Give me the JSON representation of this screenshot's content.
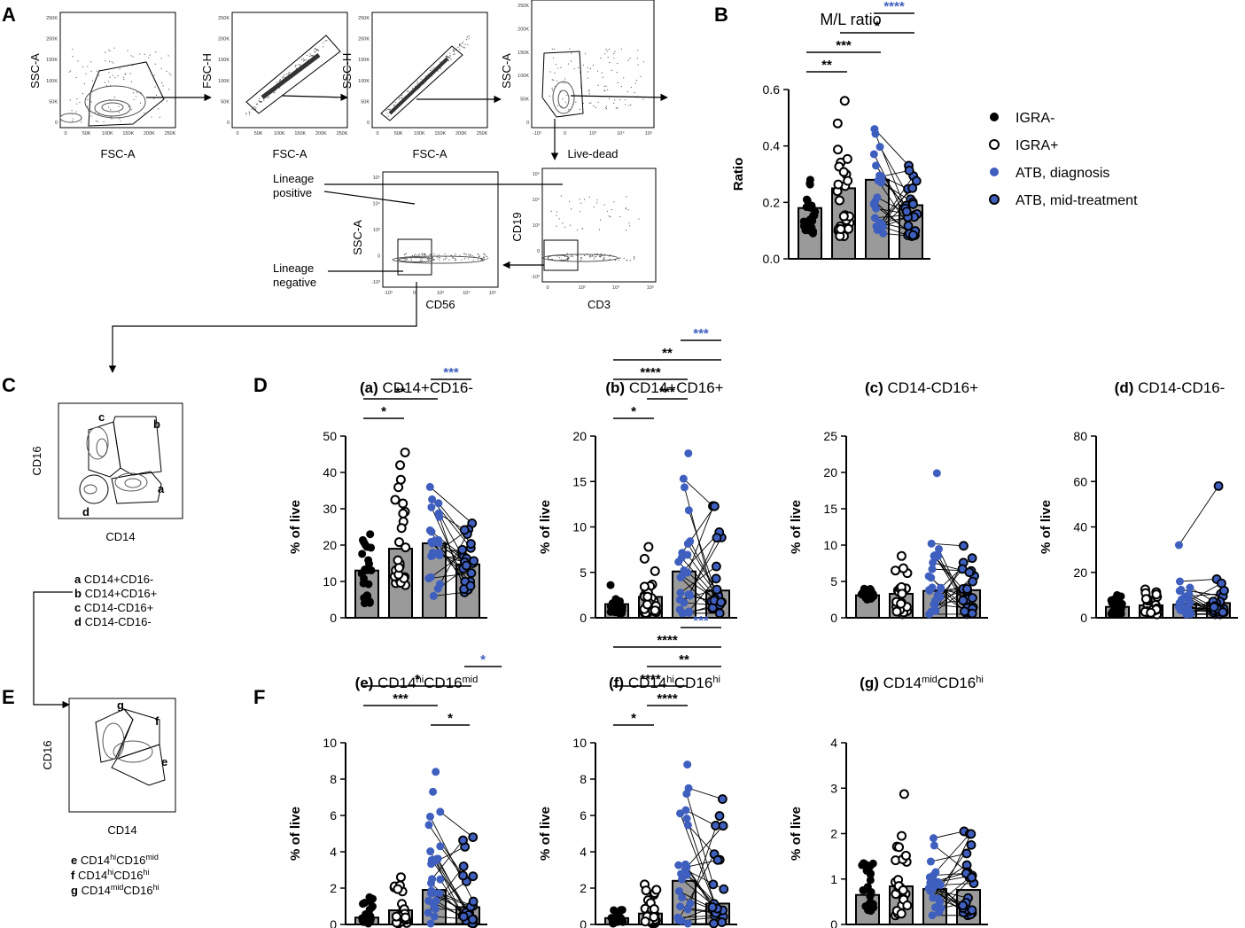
{
  "colors": {
    "black": "#000000",
    "blue": "#3f5fbf",
    "bar": "#9a9a9a",
    "contour": "#555555"
  },
  "panel_letters": [
    "A",
    "B",
    "C",
    "D",
    "E",
    "F"
  ],
  "gating": {
    "plots": [
      {
        "ylabel": "SSC-A",
        "xlabel": "FSC-A",
        "yticks": [
          "250K",
          "200K",
          "150K",
          "100K",
          "50K",
          "0"
        ],
        "xticks": [
          "0",
          "50K",
          "100K",
          "150K",
          "200K",
          "250K"
        ]
      },
      {
        "ylabel": "FSC-H",
        "xlabel": "FSC-A",
        "yticks": [
          "250K",
          "200K",
          "150K",
          "100K",
          "50K",
          "0"
        ],
        "xticks": [
          "0",
          "50K",
          "100K",
          "150K",
          "200K",
          "250K"
        ]
      },
      {
        "ylabel": "SSC-H",
        "xlabel": "FSC-A",
        "yticks": [
          "250K",
          "200K",
          "150K",
          "100K",
          "50K",
          "0"
        ],
        "xticks": [
          "0",
          "50K",
          "100K",
          "150K",
          "200K",
          "250K"
        ]
      },
      {
        "ylabel": "SSC-A",
        "xlabel": "Live-dead",
        "yticks": [
          "250K",
          "200K",
          "150K",
          "100K",
          "50K",
          "0"
        ],
        "xticks": [
          "-10³",
          "0",
          "10³",
          "10⁴",
          "10⁵"
        ]
      },
      {
        "ylabel": "SSC-A",
        "xlabel": "CD56",
        "yticks": [
          "10⁵",
          "10⁴",
          "10³",
          "0",
          "-10³"
        ],
        "xticks": [
          "-10³",
          "0",
          "10³",
          "10⁴",
          "10⁵"
        ]
      },
      {
        "ylabel": "CD19",
        "xlabel": "CD3",
        "yticks": [
          "10⁵",
          "10⁴",
          "10³",
          "0",
          "-10³"
        ],
        "xticks": [
          "0",
          "10³",
          "10⁴",
          "10⁵"
        ]
      }
    ],
    "lineage_positive": [
      "Lineage",
      "positive"
    ],
    "lineage_negative": [
      "Lineage",
      "negative"
    ]
  },
  "panel_c": {
    "ylabel": "CD16",
    "xlabel": "CD14",
    "gates": [
      "a",
      "b",
      "c",
      "d"
    ],
    "legend": [
      {
        "letter": "a",
        "text": "CD14+CD16-"
      },
      {
        "letter": "b",
        "text": "CD14+CD16+"
      },
      {
        "letter": "c",
        "text": "CD14-CD16+"
      },
      {
        "letter": "d",
        "text": "CD14-CD16-"
      }
    ]
  },
  "panel_e": {
    "ylabel": "CD16",
    "xlabel": "CD14",
    "gates": [
      "e",
      "f",
      "g"
    ],
    "legend": [
      {
        "letter": "e",
        "p1": "CD14",
        "s1": "hi",
        "p2": "CD16",
        "s2": "mid"
      },
      {
        "letter": "f",
        "p1": "CD14",
        "s1": "hi",
        "p2": "CD16",
        "s2": "hi"
      },
      {
        "letter": "g",
        "p1": "CD14",
        "s1": "mid",
        "p2": "CD16",
        "s2": "hi"
      }
    ]
  },
  "legend": [
    {
      "label": "IGRA-",
      "style": "filled-black"
    },
    {
      "label": "IGRA+",
      "style": "open-black"
    },
    {
      "label": "ATB, diagnosis",
      "style": "filled-blue"
    },
    {
      "label": "ATB, mid-treatment",
      "style": "blue-outlined"
    }
  ],
  "chart_data": [
    {
      "type": "bar",
      "id": "B",
      "title": "M/L ratio",
      "ylabel": "Ratio",
      "ylim": [
        0,
        0.6
      ],
      "yticks": [
        "0.0",
        "0.2",
        "0.4",
        "0.6"
      ],
      "ytick_values": [
        0,
        0.2,
        0.4,
        0.6
      ],
      "groups": [
        "IGRA-",
        "IGRA+",
        "ATB, diagnosis",
        "ATB, mid-treatment"
      ],
      "means": [
        0.18,
        0.25,
        0.28,
        0.19
      ],
      "spreads": [
        [
          0.09,
          0.28
        ],
        [
          0.08,
          0.48
        ],
        [
          0.09,
          0.46
        ],
        [
          0.08,
          0.33
        ]
      ],
      "outliers": [
        [],
        [
          0.56
        ],
        [],
        []
      ],
      "sig": [
        {
          "from": 0,
          "to": 1,
          "label": "**",
          "color": "black"
        },
        {
          "from": 0,
          "to": 2,
          "label": "***",
          "color": "black"
        },
        {
          "from": 1,
          "to": 3,
          "label": "*",
          "color": "black"
        },
        {
          "from": 2,
          "to": 3,
          "label": "****",
          "color": "blue"
        }
      ]
    },
    {
      "type": "bar",
      "id": "a",
      "prefix": "(a)",
      "title": "CD14+CD16-",
      "ylabel": "% of live",
      "ylim": [
        0,
        50
      ],
      "yticks": [
        "0",
        "10",
        "20",
        "30",
        "40",
        "50"
      ],
      "ytick_values": [
        0,
        10,
        20,
        30,
        40,
        50
      ],
      "groups": [
        "IGRA-",
        "IGRA+",
        "ATB, diagnosis",
        "ATB, mid-treatment"
      ],
      "means": [
        13,
        19,
        20.5,
        14.7
      ],
      "spreads": [
        [
          4,
          23
        ],
        [
          9,
          38
        ],
        [
          6,
          36
        ],
        [
          7,
          26
        ]
      ],
      "outliers": [
        [],
        [
          42,
          45.5
        ],
        [],
        []
      ],
      "sig": [
        {
          "from": 0,
          "to": 1,
          "label": "*",
          "color": "black"
        },
        {
          "from": 0,
          "to": 2,
          "label": "**",
          "color": "black"
        },
        {
          "from": 2,
          "to": 3,
          "label": "***",
          "color": "blue"
        }
      ]
    },
    {
      "type": "bar",
      "id": "b",
      "prefix": "(b)",
      "title": "CD14+CD16+",
      "ylabel": "% of live",
      "ylim": [
        0,
        20
      ],
      "yticks": [
        "0",
        "5",
        "10",
        "15",
        "20"
      ],
      "ytick_values": [
        0,
        5,
        10,
        15,
        20
      ],
      "groups": [
        "IGRA-",
        "IGRA+",
        "ATB, diagnosis",
        "ATB, mid-treatment"
      ],
      "means": [
        1.5,
        2.3,
        5.1,
        3.0
      ],
      "spreads": [
        [
          0.5,
          3.6
        ],
        [
          0.5,
          6.5
        ],
        [
          0.5,
          15.3
        ],
        [
          0.5,
          12.3
        ]
      ],
      "outliers": [
        [],
        [
          7.8
        ],
        [
          18.1
        ],
        []
      ],
      "sig": [
        {
          "from": 0,
          "to": 1,
          "label": "*",
          "color": "black"
        },
        {
          "from": 1,
          "to": 2,
          "label": "***",
          "color": "black"
        },
        {
          "from": 0,
          "to": 2,
          "label": "****",
          "color": "black"
        },
        {
          "from": 0,
          "to": 3,
          "label": "**",
          "color": "black"
        },
        {
          "from": 2,
          "to": 3,
          "label": "***",
          "color": "blue"
        }
      ]
    },
    {
      "type": "bar",
      "id": "c",
      "prefix": "(c)",
      "title": "CD14-CD16+",
      "ylabel": "% of live",
      "ylim": [
        0,
        25
      ],
      "yticks": [
        "0",
        "5",
        "10",
        "15",
        "20",
        "25"
      ],
      "ytick_values": [
        0,
        5,
        10,
        15,
        20,
        25
      ],
      "groups": [
        "IGRA-",
        "IGRA+",
        "ATB, diagnosis",
        "ATB, mid-treatment"
      ],
      "means": [
        3.1,
        3.3,
        3.7,
        3.8
      ],
      "spreads": [
        [
          2.5,
          4.0
        ],
        [
          0.5,
          8.5
        ],
        [
          0.5,
          10.2
        ],
        [
          0.5,
          9.9
        ]
      ],
      "outliers": [
        [],
        [],
        [
          19.9
        ],
        []
      ],
      "sig": []
    },
    {
      "type": "bar",
      "id": "d",
      "prefix": "(d)",
      "title": "CD14-CD16-",
      "ylabel": "% of live",
      "ylim": [
        0,
        80
      ],
      "yticks": [
        "0",
        "20",
        "40",
        "60",
        "80"
      ],
      "ytick_values": [
        0,
        20,
        40,
        60,
        80
      ],
      "groups": [
        "IGRA-",
        "IGRA+",
        "ATB, diagnosis",
        "ATB, mid-treatment"
      ],
      "means": [
        4.8,
        5.5,
        5.8,
        6.5
      ],
      "spreads": [
        [
          1.5,
          10
        ],
        [
          1.5,
          12.5
        ],
        [
          1.5,
          16
        ],
        [
          1.5,
          17
        ]
      ],
      "outliers": [
        [],
        [],
        [
          32
        ],
        [
          58
        ]
      ],
      "sig": []
    },
    {
      "type": "bar",
      "id": "e",
      "prefix": "(e)",
      "tb": "CD14",
      "ts1": "hi",
      "tm": "CD16",
      "ts2": "mid",
      "ylabel": "% of live",
      "ylim": [
        0,
        10
      ],
      "yticks": [
        "0",
        "2",
        "4",
        "6",
        "8",
        "10"
      ],
      "ytick_values": [
        0,
        2,
        4,
        6,
        8,
        10
      ],
      "groups": [
        "IGRA-",
        "IGRA+",
        "ATB, diagnosis",
        "ATB, mid-treatment"
      ],
      "means": [
        0.38,
        0.78,
        1.9,
        0.95
      ],
      "spreads": [
        [
          0.05,
          1.5
        ],
        [
          0.05,
          2.6
        ],
        [
          0.05,
          6.2
        ],
        [
          0.05,
          4.8
        ]
      ],
      "outliers": [
        [],
        [],
        [
          7.3,
          8.4
        ],
        []
      ],
      "sig": [
        {
          "from": 2,
          "to": 2.95,
          "label": "*",
          "color": "black"
        },
        {
          "from": 0,
          "to": 2,
          "label": "***",
          "color": "black"
        },
        {
          "from": 0,
          "to": 3,
          "label": "*",
          "color": "black"
        },
        {
          "from": 3,
          "to": 3.9,
          "label": "*",
          "color": "blue"
        }
      ]
    },
    {
      "type": "bar",
      "id": "f",
      "prefix": "(f)",
      "tb": "CD14",
      "ts1": "hi",
      "tm": "CD16",
      "ts2": "hi",
      "ylabel": "% of live",
      "ylim": [
        0,
        10
      ],
      "yticks": [
        "0",
        "2",
        "4",
        "6",
        "8",
        "10"
      ],
      "ytick_values": [
        0,
        2,
        4,
        6,
        8,
        10
      ],
      "groups": [
        "IGRA-",
        "IGRA+",
        "ATB, diagnosis",
        "ATB, mid-treatment"
      ],
      "means": [
        0.35,
        0.6,
        2.4,
        1.15
      ],
      "spreads": [
        [
          0.05,
          0.8
        ],
        [
          0.05,
          2.2
        ],
        [
          0.05,
          7.5
        ],
        [
          0.05,
          6.9
        ]
      ],
      "outliers": [
        [],
        [],
        [
          8.8
        ],
        []
      ],
      "sig": [
        {
          "from": 0,
          "to": 1,
          "label": "*",
          "color": "black"
        },
        {
          "from": 1,
          "to": 2,
          "label": "****",
          "color": "black"
        },
        {
          "from": 0,
          "to": 2,
          "label": "****",
          "color": "black"
        },
        {
          "from": 1,
          "to": 3,
          "label": "**",
          "color": "black"
        },
        {
          "from": 0,
          "to": 3,
          "label": "****",
          "color": "black"
        },
        {
          "from": 2,
          "to": 3,
          "label": "***",
          "color": "blue"
        }
      ]
    },
    {
      "type": "bar",
      "id": "g",
      "prefix": "(g)",
      "tb": "CD14",
      "ts1": "mid",
      "tm": "CD16",
      "ts2": "hi",
      "ylabel": "% of live",
      "ylim": [
        0,
        4
      ],
      "yticks": [
        "0",
        "1",
        "2",
        "3",
        "4"
      ],
      "ytick_values": [
        0,
        1,
        2,
        3,
        4
      ],
      "groups": [
        "IGRA-",
        "IGRA+",
        "ATB, diagnosis",
        "ATB, mid-treatment"
      ],
      "means": [
        0.65,
        0.84,
        0.78,
        0.76
      ],
      "spreads": [
        [
          0.3,
          1.35
        ],
        [
          0.2,
          1.95
        ],
        [
          0.2,
          1.9
        ],
        [
          0.2,
          2.05
        ]
      ],
      "outliers": [
        [],
        [
          2.87
        ],
        [],
        []
      ],
      "sig": []
    }
  ]
}
